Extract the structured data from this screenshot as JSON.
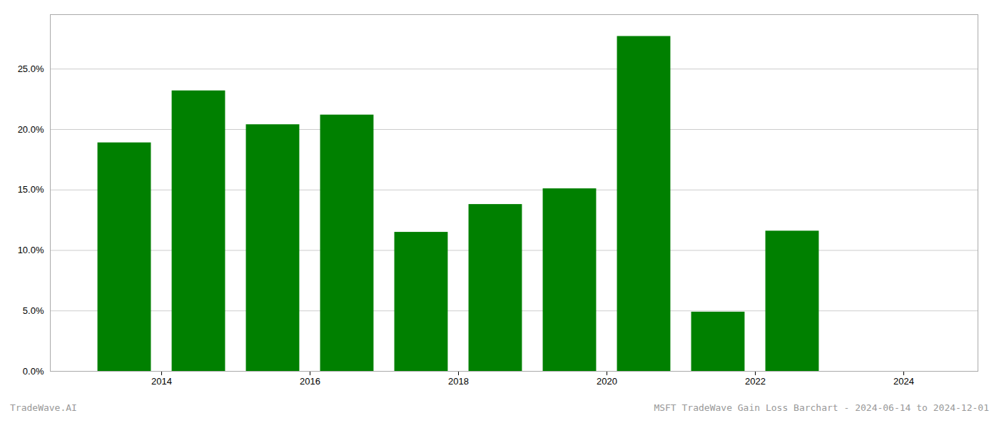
{
  "chart_data": {
    "type": "bar",
    "x": [
      2013.5,
      2014.5,
      2015.5,
      2016.5,
      2017.5,
      2018.5,
      2019.5,
      2020.5,
      2021.5,
      2022.5,
      2023.5
    ],
    "values": [
      0.189,
      0.232,
      0.204,
      0.212,
      0.115,
      0.138,
      0.151,
      0.277,
      0.049,
      0.116,
      0.0
    ],
    "color": "#008000",
    "xlim": [
      2012.5,
      2025.0
    ],
    "xticks": [
      2014,
      2016,
      2018,
      2020,
      2022,
      2024
    ],
    "ylim": [
      0,
      0.295
    ],
    "yticks": [
      {
        "value": 0.0,
        "label": "0.0%"
      },
      {
        "value": 0.05,
        "label": "5.0%"
      },
      {
        "value": 0.1,
        "label": "10.0%"
      },
      {
        "value": 0.15,
        "label": "15.0%"
      },
      {
        "value": 0.2,
        "label": "20.0%"
      },
      {
        "value": 0.25,
        "label": "25.0%"
      }
    ],
    "grid": true,
    "annotations": [
      "TradeWave.AI",
      "MSFT TradeWave Gain Loss Barchart - 2024-06-14 to 2024-12-01"
    ]
  }
}
